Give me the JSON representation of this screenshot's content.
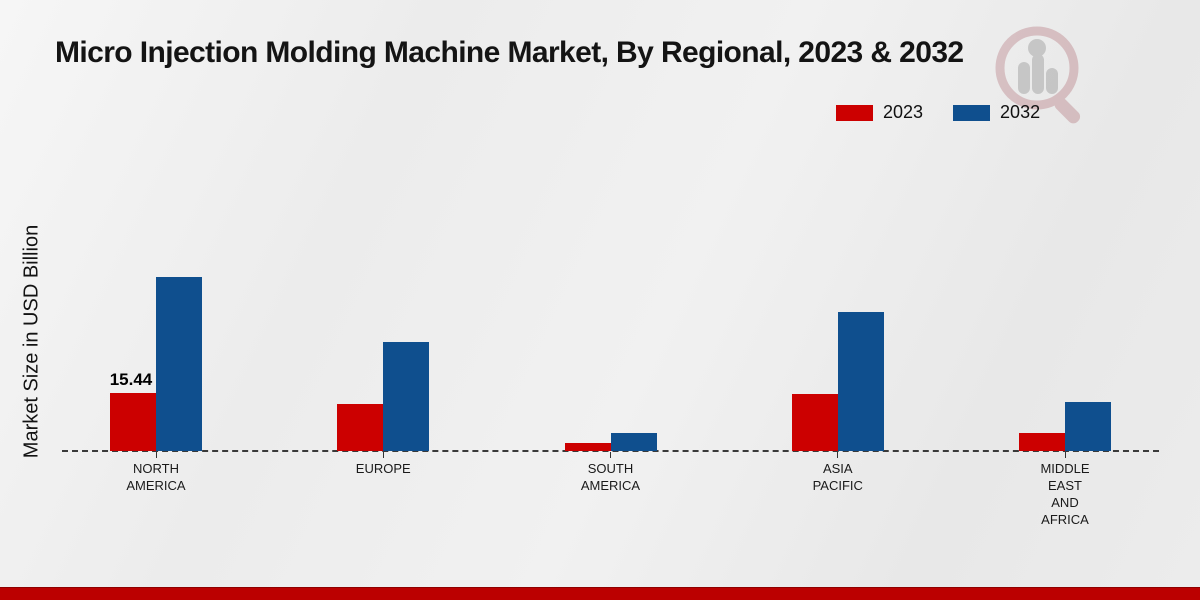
{
  "title": "Micro Injection Molding Machine Market, By Regional, 2023 & 2032",
  "ylabel": "Market Size in USD Billion",
  "legend": [
    {
      "label": "2023",
      "color": "#cc0000"
    },
    {
      "label": "2032",
      "color": "#0f4f8e"
    }
  ],
  "chart_data": {
    "type": "bar",
    "title": "Micro Injection Molding Machine Market, By Regional, 2023 & 2032",
    "xlabel": "",
    "ylabel": "Market Size in USD Billion",
    "categories": [
      "NORTH AMERICA",
      "EUROPE",
      "SOUTH AMERICA",
      "ASIA PACIFIC",
      "MIDDLE EAST AND AFRICA"
    ],
    "category_lines": [
      [
        "NORTH",
        "AMERICA"
      ],
      [
        "EUROPE"
      ],
      [
        "SOUTH",
        "AMERICA"
      ],
      [
        "ASIA",
        "PACIFIC"
      ],
      [
        "MIDDLE",
        "EAST",
        "AND",
        "AFRICA"
      ]
    ],
    "series": [
      {
        "name": "2023",
        "color": "#cc0000",
        "values": [
          15.44,
          12.5,
          2.1,
          15.2,
          4.8
        ]
      },
      {
        "name": "2032",
        "color": "#0f4f8e",
        "values": [
          46.3,
          29.0,
          4.8,
          37.0,
          13.0
        ]
      }
    ],
    "data_labels": [
      {
        "series": "2023",
        "category": "NORTH AMERICA",
        "text": "15.44"
      }
    ],
    "ylim": [
      0,
      50
    ],
    "grid": false,
    "y_axis_ticks_visible": false,
    "baseline_style": "dashed",
    "legend_position": "top-right"
  },
  "footer": {
    "bar_color": "#bb0000"
  },
  "watermark_icon": "magnifier-bar-chart-logo"
}
